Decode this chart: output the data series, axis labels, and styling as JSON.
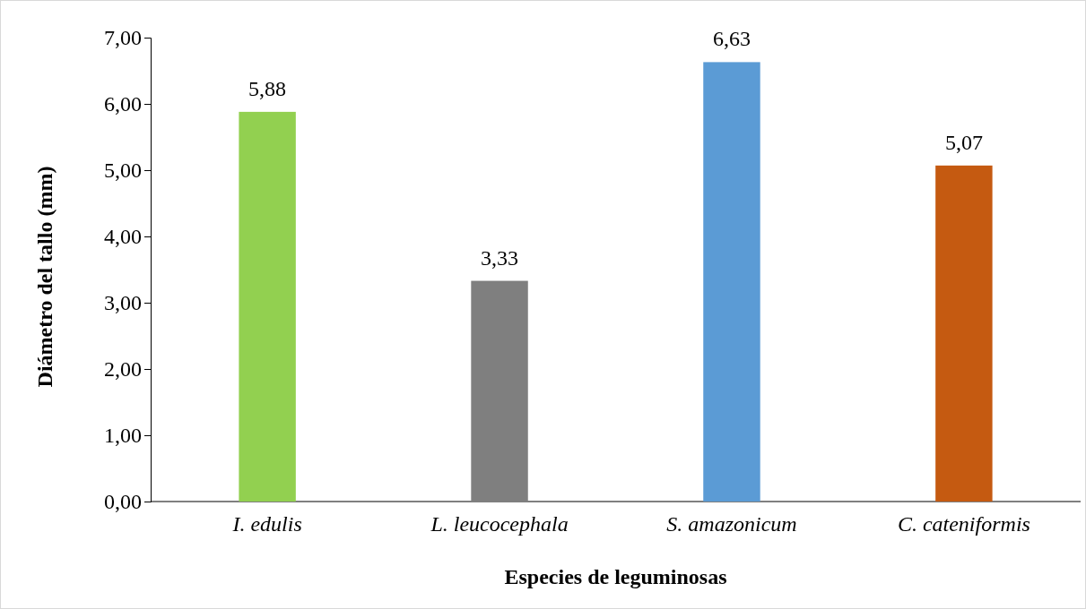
{
  "chart_data": {
    "type": "bar",
    "xlabel": "Especies de leguminosas",
    "ylabel": "Diámetro del tallo (mm)",
    "categories": [
      "I. edulis",
      "L. leucocephala",
      "S. amazonicum",
      "C. cateniformis"
    ],
    "values": [
      5.88,
      3.33,
      6.63,
      5.07
    ],
    "colors": [
      "#92d050",
      "#7f7f7f",
      "#5b9bd5",
      "#c55a11"
    ],
    "value_labels": [
      "5,88",
      "3,33",
      "6,63",
      "5,07"
    ],
    "ylim": [
      0,
      7
    ],
    "yticks": [
      {
        "value": 0,
        "label": "0,00"
      },
      {
        "value": 1,
        "label": "1,00"
      },
      {
        "value": 2,
        "label": "2,00"
      },
      {
        "value": 3,
        "label": "3,00"
      },
      {
        "value": 4,
        "label": "4,00"
      },
      {
        "value": 5,
        "label": "5,00"
      },
      {
        "value": 6,
        "label": "6,00"
      },
      {
        "value": 7,
        "label": "7,00"
      }
    ],
    "grid": false
  }
}
